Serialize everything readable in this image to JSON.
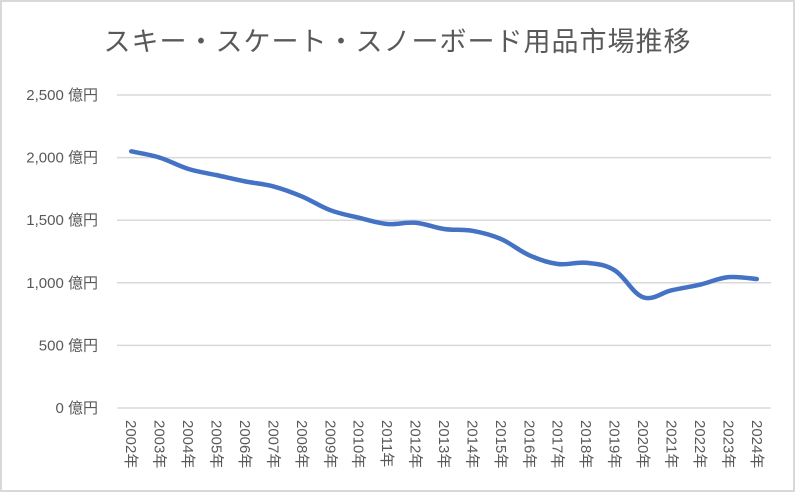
{
  "chart_data": {
    "type": "line",
    "title": "スキー・スケート・スノーボード用品市場推移",
    "xlabel": "",
    "ylabel": "",
    "ylim": [
      0,
      2500
    ],
    "yticks": [
      0,
      500,
      1000,
      1500,
      2000,
      2500
    ],
    "ytick_labels": [
      "0 億円",
      "500 億円",
      "1,000 億円",
      "1,500 億円",
      "2,000 億円",
      "2,500 億円"
    ],
    "grid": true,
    "legend": null,
    "categories": [
      "2002年",
      "2003年",
      "2004年",
      "2005年",
      "2006年",
      "2007年",
      "2008年",
      "2009年",
      "2010年",
      "2011年",
      "2012年",
      "2013年",
      "2014年",
      "2015年",
      "2016年",
      "2017年",
      "2018年",
      "2019年",
      "2020年",
      "2021年",
      "2022年",
      "2023年",
      "2024年"
    ],
    "series": [
      {
        "name": "スキー・スケート・スノーボード用品市場",
        "color": "#4472c4",
        "values": [
          2050,
          2000,
          1910,
          1860,
          1810,
          1770,
          1690,
          1580,
          1520,
          1470,
          1480,
          1430,
          1415,
          1350,
          1220,
          1150,
          1160,
          1100,
          885,
          940,
          985,
          1045,
          1030
        ]
      }
    ]
  },
  "colors": {
    "line": "#4472c4",
    "grid": "#d9d9d9",
    "text": "#595959",
    "border": "#d9d9d9"
  }
}
